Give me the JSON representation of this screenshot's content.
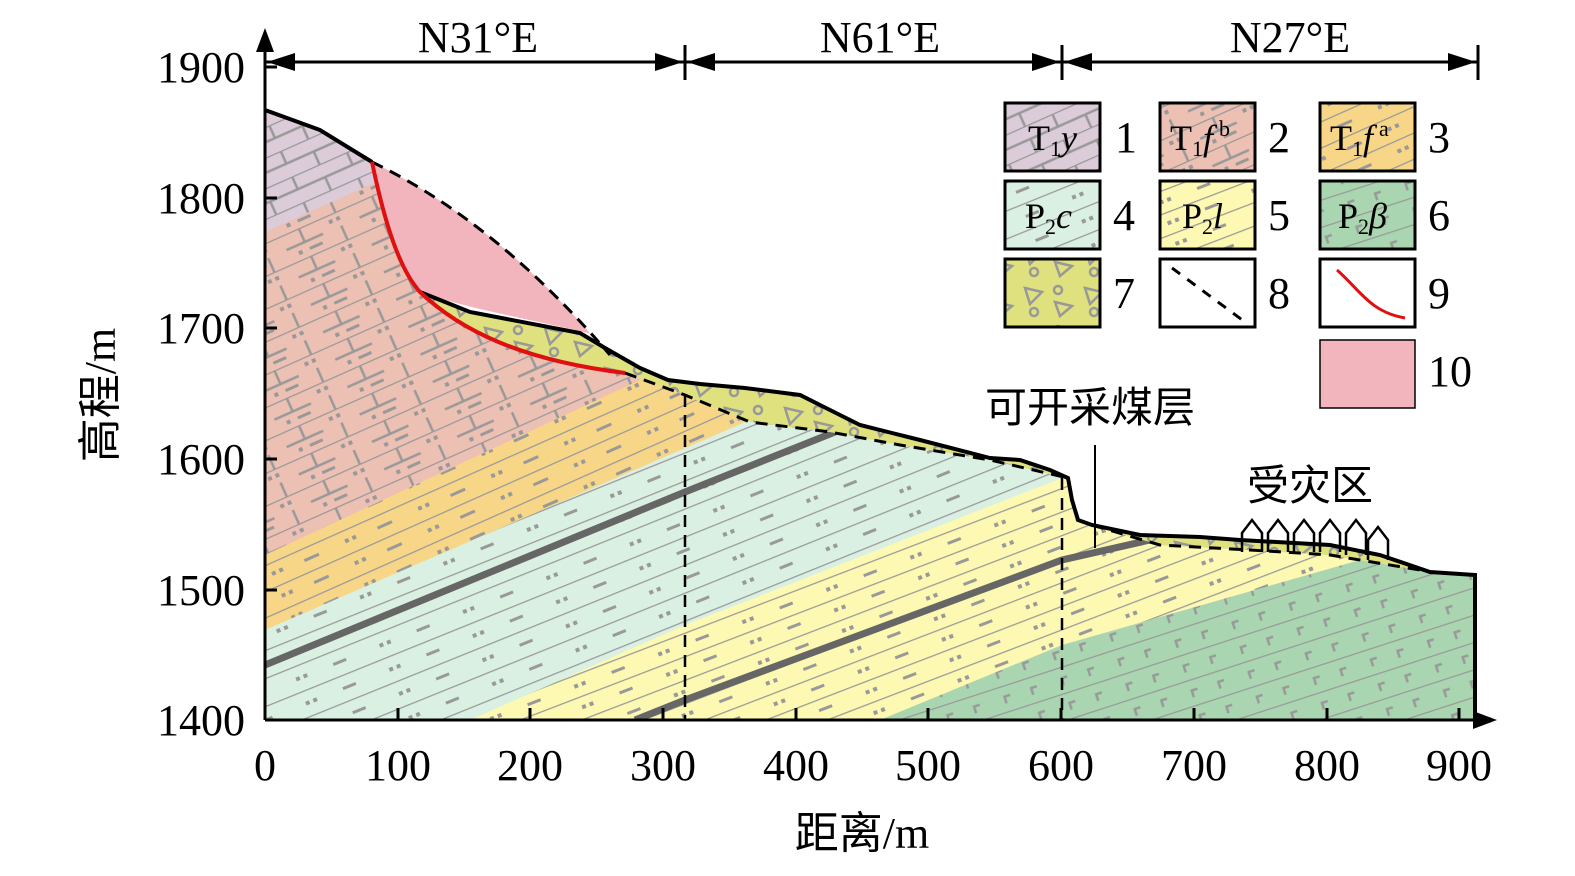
{
  "directions": [
    "N31°E",
    "N61°E",
    "N27°E"
  ],
  "y_axis": {
    "title": "高程/m",
    "ticks": [
      "1900",
      "1800",
      "1700",
      "1600",
      "1500",
      "1400"
    ]
  },
  "x_axis": {
    "title": "距离/m",
    "ticks": [
      "0",
      "100",
      "200",
      "300",
      "400",
      "500",
      "600",
      "700",
      "800",
      "900"
    ]
  },
  "annotations": {
    "coal_seam": "可开采煤层",
    "affected_zone": "受灾区"
  },
  "legend": [
    {
      "num": "1",
      "base": "T",
      "sub": "1",
      "it": "y",
      "sup": "",
      "color": "#dccbd9"
    },
    {
      "num": "2",
      "base": "T",
      "sub": "1",
      "it": "f",
      "sup": "b",
      "color": "#ecc0b3"
    },
    {
      "num": "3",
      "base": "T",
      "sub": "1",
      "it": "f",
      "sup": "a",
      "color": "#f8d688"
    },
    {
      "num": "4",
      "base": "P",
      "sub": "2",
      "it": "c",
      "sup": "",
      "color": "#d9f0e3"
    },
    {
      "num": "5",
      "base": "P",
      "sub": "2",
      "it": "l",
      "sup": "",
      "color": "#fdf9b2"
    },
    {
      "num": "6",
      "base": "P",
      "sub": "2",
      "it": "β",
      "sup": "",
      "color": "#a9d6b1"
    },
    {
      "num": "7",
      "color": "#dfe07e"
    },
    {
      "num": "8"
    },
    {
      "num": "9",
      "color": "#e01010"
    },
    {
      "num": "10",
      "color": "#f3b5bd"
    }
  ]
}
